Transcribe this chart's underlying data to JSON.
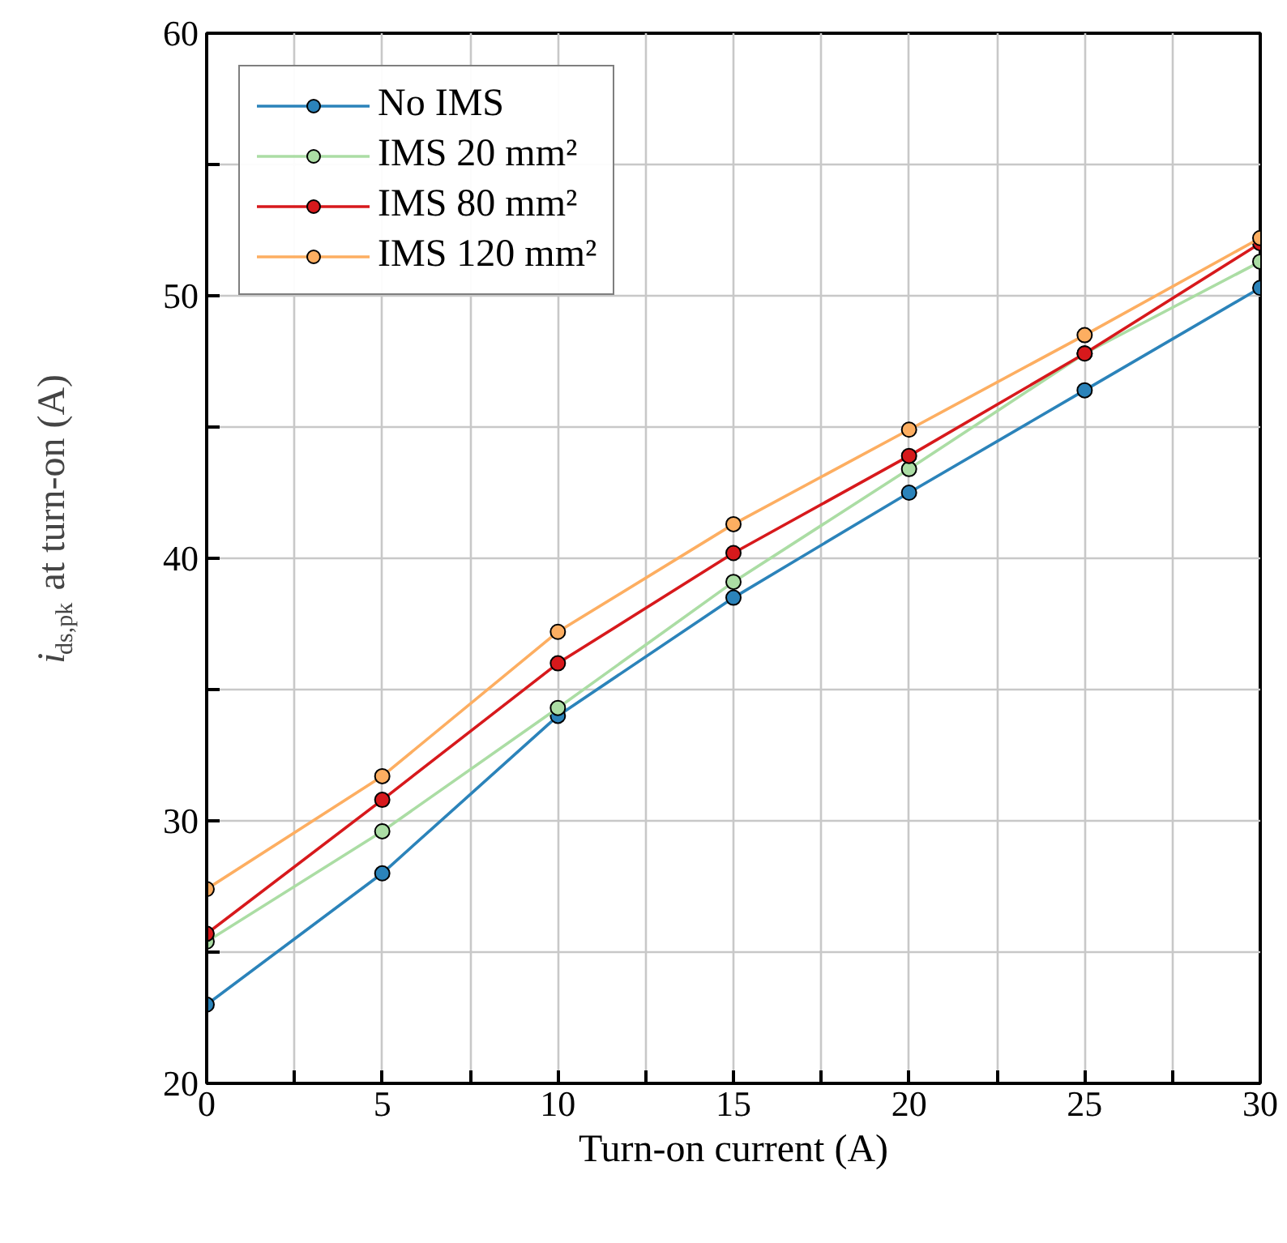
{
  "chart_data": {
    "type": "line",
    "xlabel": "Turn-on current (A)",
    "ylabel": "i$_{ds,pk}$ at turn-on (A)",
    "x": [
      0,
      5,
      10,
      15,
      20,
      25,
      30
    ],
    "series": [
      {
        "name": "No IMS",
        "color": "#2b83ba",
        "values": [
          23.0,
          28.0,
          34.0,
          38.5,
          42.5,
          46.4,
          50.3
        ]
      },
      {
        "name": "IMS 20 mm²",
        "color": "#abdda4",
        "values": [
          25.4,
          29.6,
          34.3,
          39.1,
          43.4,
          47.8,
          51.3
        ]
      },
      {
        "name": "IMS 80 mm²",
        "color": "#d7191c",
        "values": [
          25.7,
          30.8,
          36.0,
          40.2,
          43.9,
          47.8,
          52.0
        ]
      },
      {
        "name": "IMS 120 mm²",
        "color": "#fdae61",
        "values": [
          27.4,
          31.7,
          37.2,
          41.3,
          44.9,
          48.5,
          52.2
        ]
      }
    ],
    "xlim": [
      0,
      30
    ],
    "ylim": [
      20,
      60
    ],
    "xticks": [
      0,
      {
        "value": 2.5,
        "label": null
      },
      5,
      {
        "value": 7.5,
        "label": null
      },
      10,
      {
        "value": 12.5,
        "label": null
      },
      15,
      {
        "value": 17.5,
        "label": null
      },
      20,
      {
        "value": 22.5,
        "label": null
      },
      25,
      {
        "value": 27.5,
        "label": null
      },
      30
    ],
    "yticks": [
      20,
      {
        "value": 25,
        "label": null
      },
      30,
      {
        "value": 35,
        "label": null
      },
      40,
      {
        "value": 45,
        "label": null
      },
      50,
      {
        "value": 55,
        "label": null
      },
      60
    ],
    "grid": true,
    "legend": "top left",
    "marker": "circle",
    "line_style": "solid"
  }
}
